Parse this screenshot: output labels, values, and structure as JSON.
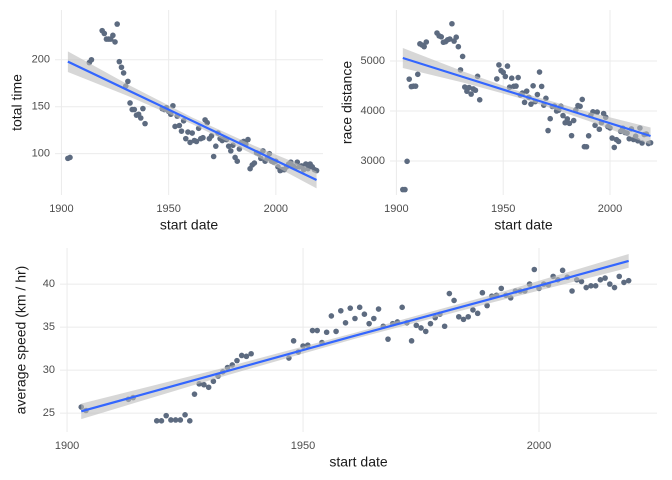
{
  "chart_data": [
    {
      "type": "scatter",
      "x_label": "start date",
      "y_label": "total time",
      "color": "#5d6b80",
      "grid": true,
      "xlim": [
        1897,
        2022
      ],
      "ylim": [
        56,
        253
      ],
      "xticks": [
        1900,
        1950,
        2000
      ],
      "yticks": [
        100,
        150,
        200
      ],
      "x": [
        1903,
        1904,
        1913,
        1914,
        1919,
        1920,
        1921,
        1922,
        1923,
        1924,
        1925,
        1926,
        1927,
        1928,
        1929,
        1930,
        1931,
        1932,
        1933,
        1934,
        1935,
        1936,
        1937,
        1938,
        1939,
        1947,
        1948,
        1949,
        1950,
        1951,
        1952,
        1953,
        1954,
        1955,
        1956,
        1957,
        1958,
        1959,
        1960,
        1961,
        1962,
        1963,
        1964,
        1965,
        1966,
        1967,
        1968,
        1969,
        1970,
        1971,
        1972,
        1973,
        1974,
        1975,
        1976,
        1977,
        1978,
        1979,
        1980,
        1981,
        1982,
        1983,
        1984,
        1985,
        1986,
        1987,
        1988,
        1989,
        1990,
        1991,
        1992,
        1993,
        1994,
        1995,
        1996,
        1997,
        1998,
        1999,
        2000,
        2001,
        2002,
        2003,
        2004,
        2005,
        2006,
        2007,
        2008,
        2009,
        2010,
        2011,
        2012,
        2013,
        2014,
        2015,
        2016,
        2017,
        2018,
        2019
      ],
      "values": [
        95,
        96,
        197,
        200,
        231,
        228,
        222,
        222,
        222,
        226,
        219,
        238,
        198,
        192,
        186,
        172,
        177,
        154,
        147,
        147,
        141,
        142,
        138,
        148,
        132,
        148,
        147,
        149,
        145,
        142,
        151,
        129,
        140,
        130,
        124,
        135,
        116,
        123,
        112,
        122,
        114,
        113,
        127,
        116,
        117,
        136,
        133,
        116,
        119,
        97,
        108,
        122,
        116,
        114,
        116,
        115,
        108,
        103,
        109,
        96,
        92,
        105,
        112,
        113,
        110,
        115,
        84,
        88,
        90,
        101,
        100,
        95,
        103,
        92,
        95,
        100,
        92,
        91,
        92,
        86,
        82,
        83,
        83,
        86,
        89,
        91,
        87,
        85,
        91,
        86,
        87,
        83,
        89,
        84,
        89,
        86,
        83,
        82
      ],
      "trend": {
        "color": "#3366ff",
        "band_color": "#bdbdbd",
        "x": [
          1903,
          1932,
          1961,
          1990,
          2019
        ],
        "values": [
          198,
          166.5,
          135,
          103.5,
          72
        ],
        "lower": [
          187,
          160.5,
          131.5,
          98.5,
          63
        ],
        "upper": [
          209,
          172.5,
          138.5,
          108.5,
          81
        ]
      }
    },
    {
      "type": "scatter",
      "x_label": "start date",
      "y_label": "race distance",
      "color": "#5d6b80",
      "grid": true,
      "xlim": [
        1897,
        2022
      ],
      "ylim": [
        2320,
        6020
      ],
      "xticks": [
        1900,
        1950,
        2000
      ],
      "yticks": [
        3000,
        4000,
        5000
      ],
      "x": [
        1903,
        1904,
        1905,
        1906,
        1907,
        1908,
        1909,
        1910,
        1911,
        1912,
        1913,
        1914,
        1919,
        1920,
        1921,
        1922,
        1923,
        1924,
        1925,
        1926,
        1927,
        1928,
        1929,
        1930,
        1931,
        1932,
        1933,
        1934,
        1935,
        1936,
        1937,
        1938,
        1939,
        1947,
        1948,
        1949,
        1950,
        1951,
        1952,
        1953,
        1954,
        1955,
        1956,
        1957,
        1958,
        1959,
        1960,
        1961,
        1962,
        1963,
        1964,
        1965,
        1966,
        1967,
        1968,
        1969,
        1970,
        1971,
        1972,
        1973,
        1974,
        1975,
        1976,
        1977,
        1978,
        1979,
        1980,
        1981,
        1982,
        1983,
        1984,
        1985,
        1986,
        1987,
        1988,
        1989,
        1990,
        1991,
        1992,
        1993,
        1994,
        1995,
        1996,
        1997,
        1998,
        1999,
        2000,
        2001,
        2002,
        2003,
        2004,
        2005,
        2006,
        2007,
        2008,
        2009,
        2010,
        2011,
        2012,
        2013,
        2014,
        2015,
        2016,
        2017,
        2018,
        2019
      ],
      "values": [
        2428,
        2428,
        2994,
        4637,
        4488,
        4497,
        4497,
        4734,
        5343,
        5319,
        5287,
        5380,
        5560,
        5503,
        5484,
        5375,
        5386,
        5425,
        5440,
        5745,
        5398,
        5476,
        5286,
        4822,
        5091,
        4479,
        4395,
        4470,
        4338,
        4442,
        4415,
        4694,
        4224,
        4642,
        4922,
        4808,
        4773,
        4690,
        4898,
        4476,
        4656,
        4495,
        4498,
        4669,
        4319,
        4358,
        4173,
        4397,
        4274,
        4137,
        4504,
        4188,
        4329,
        4779,
        4492,
        4117,
        4254,
        3608,
        3846,
        4090,
        4098,
        4000,
        4017,
        4096,
        3908,
        3765,
        3842,
        3753,
        3507,
        3809,
        4021,
        4109,
        4094,
        4231,
        3286,
        3285,
        3504,
        3914,
        3983,
        3714,
        3978,
        3635,
        3765,
        3950,
        3875,
        3687,
        3662,
        3458,
        3272,
        3427,
        3391,
        3593,
        3657,
        3570,
        3559,
        3445,
        3642,
        3430,
        3496,
        3404,
        3660,
        3360,
        3529,
        3540,
        3349,
        3365
      ],
      "trend": {
        "color": "#3366ff",
        "band_color": "#bdbdbd",
        "x": [
          1903,
          1932,
          1961,
          1990,
          2019
        ],
        "values": [
          5060,
          4670,
          4280,
          3890,
          3500
        ],
        "lower": [
          4860,
          4560,
          4220,
          3800,
          3330
        ],
        "upper": [
          5260,
          4780,
          4340,
          3980,
          3670
        ]
      }
    },
    {
      "type": "scatter",
      "x_label": "start date",
      "y_label": "average speed (km / hr)",
      "color": "#5d6b80",
      "grid": true,
      "xlim": [
        1898.5,
        2025
      ],
      "ylim": [
        22.8,
        44.2
      ],
      "xticks": [
        1900,
        1950,
        2000
      ],
      "yticks": [
        25,
        30,
        35,
        40
      ],
      "x": [
        1903,
        1904,
        1913,
        1914,
        1919,
        1920,
        1921,
        1922,
        1923,
        1924,
        1925,
        1926,
        1927,
        1928,
        1929,
        1930,
        1931,
        1932,
        1933,
        1934,
        1935,
        1936,
        1937,
        1938,
        1939,
        1947,
        1948,
        1949,
        1950,
        1951,
        1952,
        1953,
        1954,
        1955,
        1956,
        1957,
        1958,
        1959,
        1960,
        1961,
        1962,
        1963,
        1964,
        1965,
        1966,
        1967,
        1968,
        1969,
        1970,
        1971,
        1972,
        1973,
        1974,
        1975,
        1976,
        1977,
        1978,
        1979,
        1980,
        1981,
        1982,
        1983,
        1984,
        1985,
        1986,
        1987,
        1988,
        1989,
        1990,
        1991,
        1992,
        1993,
        1994,
        1995,
        1996,
        1997,
        1998,
        1999,
        2000,
        2001,
        2002,
        2003,
        2004,
        2005,
        2006,
        2007,
        2008,
        2009,
        2010,
        2011,
        2012,
        2013,
        2014,
        2015,
        2016,
        2017,
        2018,
        2019
      ],
      "values": [
        25.7,
        25.3,
        26.6,
        26.8,
        24.1,
        24.1,
        24.7,
        24.2,
        24.2,
        24.2,
        24.8,
        24.1,
        27.2,
        28.4,
        28.3,
        28.0,
        28.7,
        29.3,
        29.8,
        30.3,
        30.6,
        31.1,
        31.7,
        31.6,
        31.9,
        31.4,
        33.4,
        32.1,
        32.8,
        32.9,
        34.6,
        34.6,
        33.2,
        34.4,
        36.3,
        34.5,
        36.9,
        35.5,
        37.2,
        36.0,
        37.3,
        36.5,
        35.4,
        36.0,
        37.1,
        35.1,
        33.6,
        35.4,
        35.6,
        37.3,
        35.5,
        33.4,
        35.2,
        34.9,
        34.5,
        35.4,
        36.1,
        36.5,
        35.1,
        38.9,
        38.1,
        36.2,
        35.9,
        36.2,
        37.0,
        36.6,
        39.0,
        37.5,
        38.6,
        38.7,
        39.5,
        38.7,
        38.4,
        39.2,
        39.2,
        39.2,
        40.0,
        41.7,
        39.5,
        40.0,
        39.9,
        40.9,
        40.5,
        41.6,
        40.8,
        39.2,
        40.5,
        40.3,
        39.6,
        39.8,
        39.8,
        40.5,
        40.7,
        40.0,
        39.6,
        40.9,
        40.2,
        40.4
      ],
      "trend": {
        "color": "#3366ff",
        "band_color": "#bdbdbd",
        "x": [
          1903,
          1932,
          1961,
          1990,
          2019
        ],
        "values": [
          25.2,
          29.6,
          34.0,
          38.3,
          42.7
        ],
        "lower": [
          24.3,
          29.1,
          33.65,
          37.85,
          41.9
        ],
        "upper": [
          26.1,
          30.1,
          34.35,
          38.75,
          43.5
        ]
      }
    }
  ]
}
